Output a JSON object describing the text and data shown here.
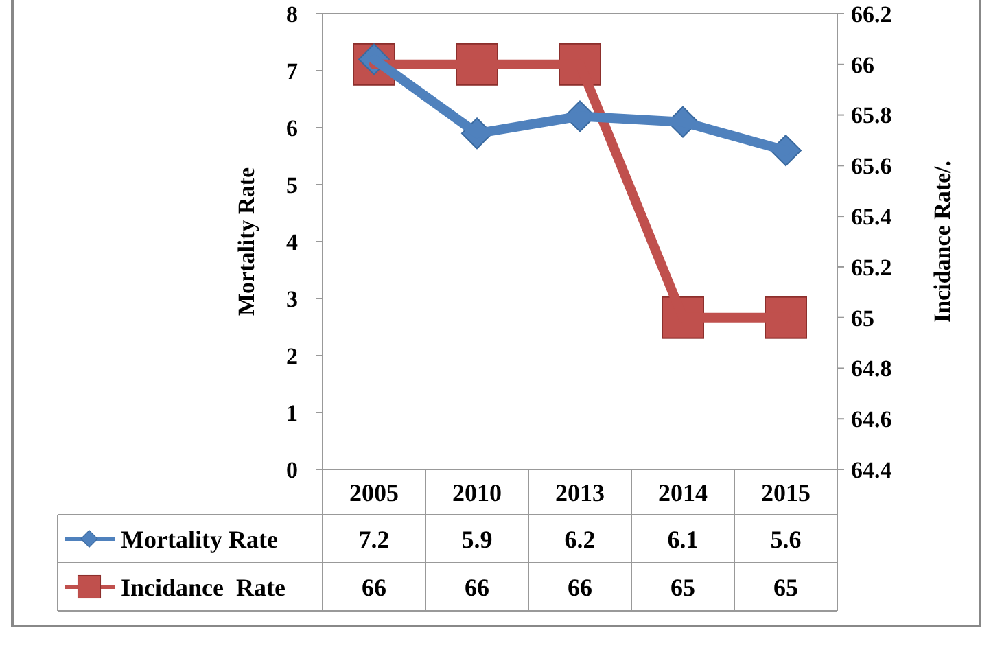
{
  "chart_data": {
    "type": "line",
    "categories": [
      "2005",
      "2010",
      "2013",
      "2014",
      "2015"
    ],
    "ylabel": "Mortality Rate",
    "y2label": "Incidance Rate/.",
    "ylim": [
      0,
      8
    ],
    "yticks": [
      0,
      1,
      2,
      3,
      4,
      5,
      6,
      7,
      8
    ],
    "y2lim": [
      64.4,
      66.2
    ],
    "y2ticks": [
      64.4,
      64.6,
      64.8,
      65,
      65.2,
      65.4,
      65.6,
      65.8,
      66,
      66.2
    ],
    "series": [
      {
        "name": "Mortality Rate",
        "color": "#4f81bd",
        "values": [
          7.2,
          5.9,
          6.2,
          6.1,
          5.6
        ],
        "marker": "diamond"
      },
      {
        "name": "Incidance  Rate",
        "color": "#c0504d",
        "values": [
          66,
          66,
          66,
          65,
          65
        ],
        "marker": "square",
        "axis": "y2"
      }
    ],
    "data_labels": true,
    "legend": "bottom",
    "grid": false
  }
}
